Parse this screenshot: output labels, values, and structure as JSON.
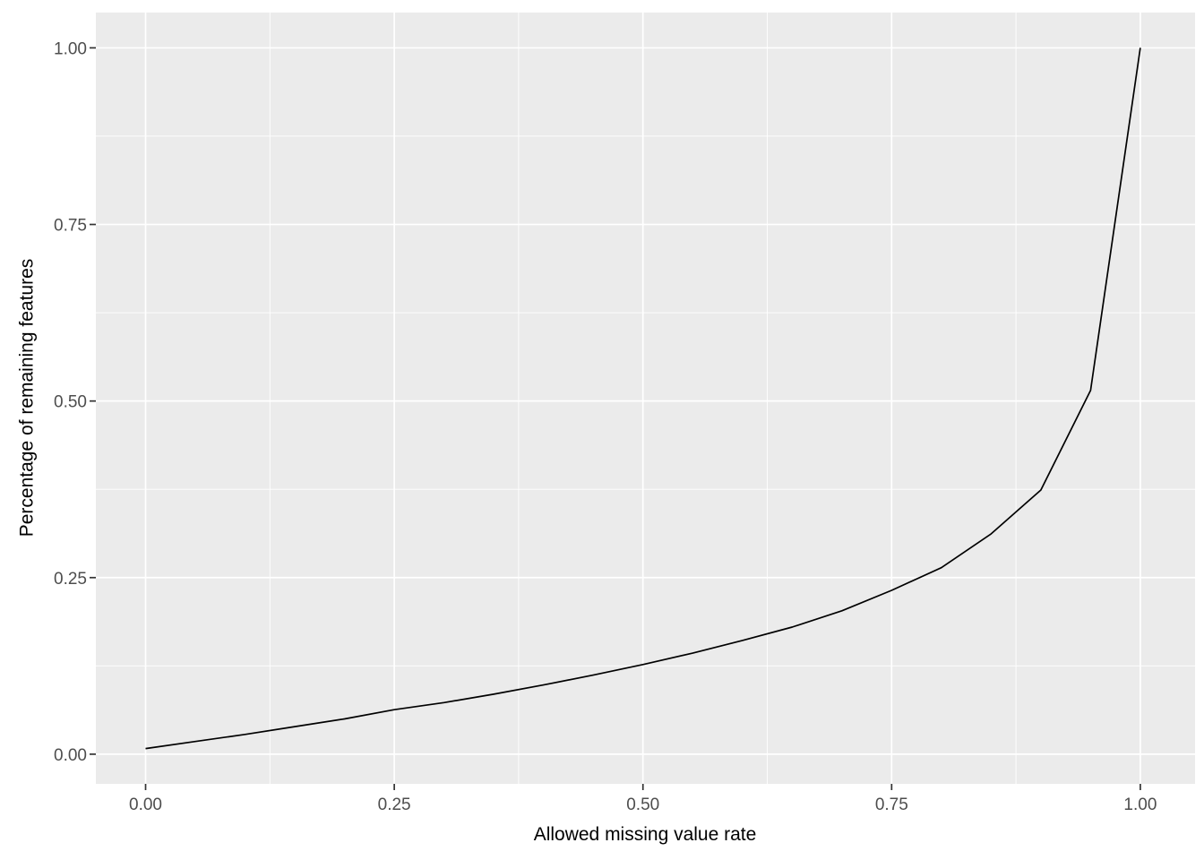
{
  "figure": {
    "background_color": "#FFFFFF",
    "panel_background_color": "#EBEBEB",
    "grid_color": "#FFFFFF",
    "line_color": "#000000",
    "tick_label_color": "#4D4D4D",
    "axis_title_color": "#000000",
    "tick_mark_color": "#333333"
  },
  "chart_data": {
    "type": "line",
    "title": "",
    "xlabel": "Allowed missing value rate",
    "ylabel": "Percentage of remaining features",
    "x": [
      0.0,
      0.05,
      0.1,
      0.15,
      0.2,
      0.25,
      0.3,
      0.35,
      0.4,
      0.45,
      0.5,
      0.55,
      0.6,
      0.65,
      0.7,
      0.75,
      0.8,
      0.85,
      0.9,
      0.95,
      1.0
    ],
    "y": [
      0.008,
      0.018,
      0.028,
      0.039,
      0.05,
      0.063,
      0.073,
      0.085,
      0.098,
      0.112,
      0.127,
      0.143,
      0.161,
      0.18,
      0.203,
      0.232,
      0.264,
      0.312,
      0.374,
      0.515,
      1.0
    ],
    "x_ticks": {
      "values": [
        0,
        0.25,
        0.5,
        0.75,
        1
      ],
      "labels": [
        "0.00",
        "0.25",
        "0.50",
        "0.75",
        "1.00"
      ]
    },
    "y_ticks": {
      "values": [
        0,
        0.25,
        0.5,
        0.75,
        1
      ],
      "labels": [
        "0.00",
        "0.25",
        "0.50",
        "0.75",
        "1.00"
      ]
    },
    "x_minor": [
      0.125,
      0.375,
      0.625,
      0.875
    ],
    "y_minor": [
      0.125,
      0.375,
      0.625,
      0.875
    ],
    "xlim": [
      -0.05,
      1.055
    ],
    "ylim": [
      -0.042,
      1.05
    ],
    "grid": true,
    "legend_position": "none"
  }
}
